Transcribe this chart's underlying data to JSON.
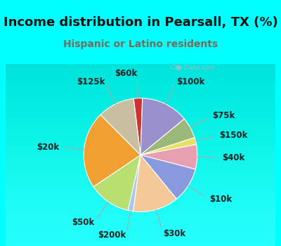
{
  "title": "Income distribution in Pearsall, TX (%)",
  "subtitle": "Hispanic or Latino residents",
  "title_color": "#111111",
  "subtitle_color": "#7a6a5a",
  "background_color": "#00FFFF",
  "chart_bg_top": "#f0faf5",
  "chart_bg_bottom": "#d0ede0",
  "watermark": "City-Data.com",
  "slices": [
    {
      "label": "$60k",
      "value": 2.5,
      "color": "#cc3333"
    },
    {
      "label": "$100k",
      "value": 13.5,
      "color": "#9990cc"
    },
    {
      "label": "$75k",
      "value": 6.0,
      "color": "#9ab87a"
    },
    {
      "label": "$150k",
      "value": 2.0,
      "color": "#e8e060"
    },
    {
      "label": "$40k",
      "value": 7.0,
      "color": "#e8a0b0"
    },
    {
      "label": "$10k",
      "value": 10.0,
      "color": "#8899dd"
    },
    {
      "label": "$30k",
      "value": 13.0,
      "color": "#f5c898"
    },
    {
      "label": "$200k",
      "value": 1.5,
      "color": "#a8c8ee"
    },
    {
      "label": "$50k",
      "value": 12.0,
      "color": "#b8e070"
    },
    {
      "label": "$20k",
      "value": 22.0,
      "color": "#f0a030"
    },
    {
      "label": "$125k",
      "value": 10.5,
      "color": "#c8bfa0"
    }
  ],
  "label_fontsize": 8.5,
  "title_fontsize": 13,
  "subtitle_fontsize": 10
}
